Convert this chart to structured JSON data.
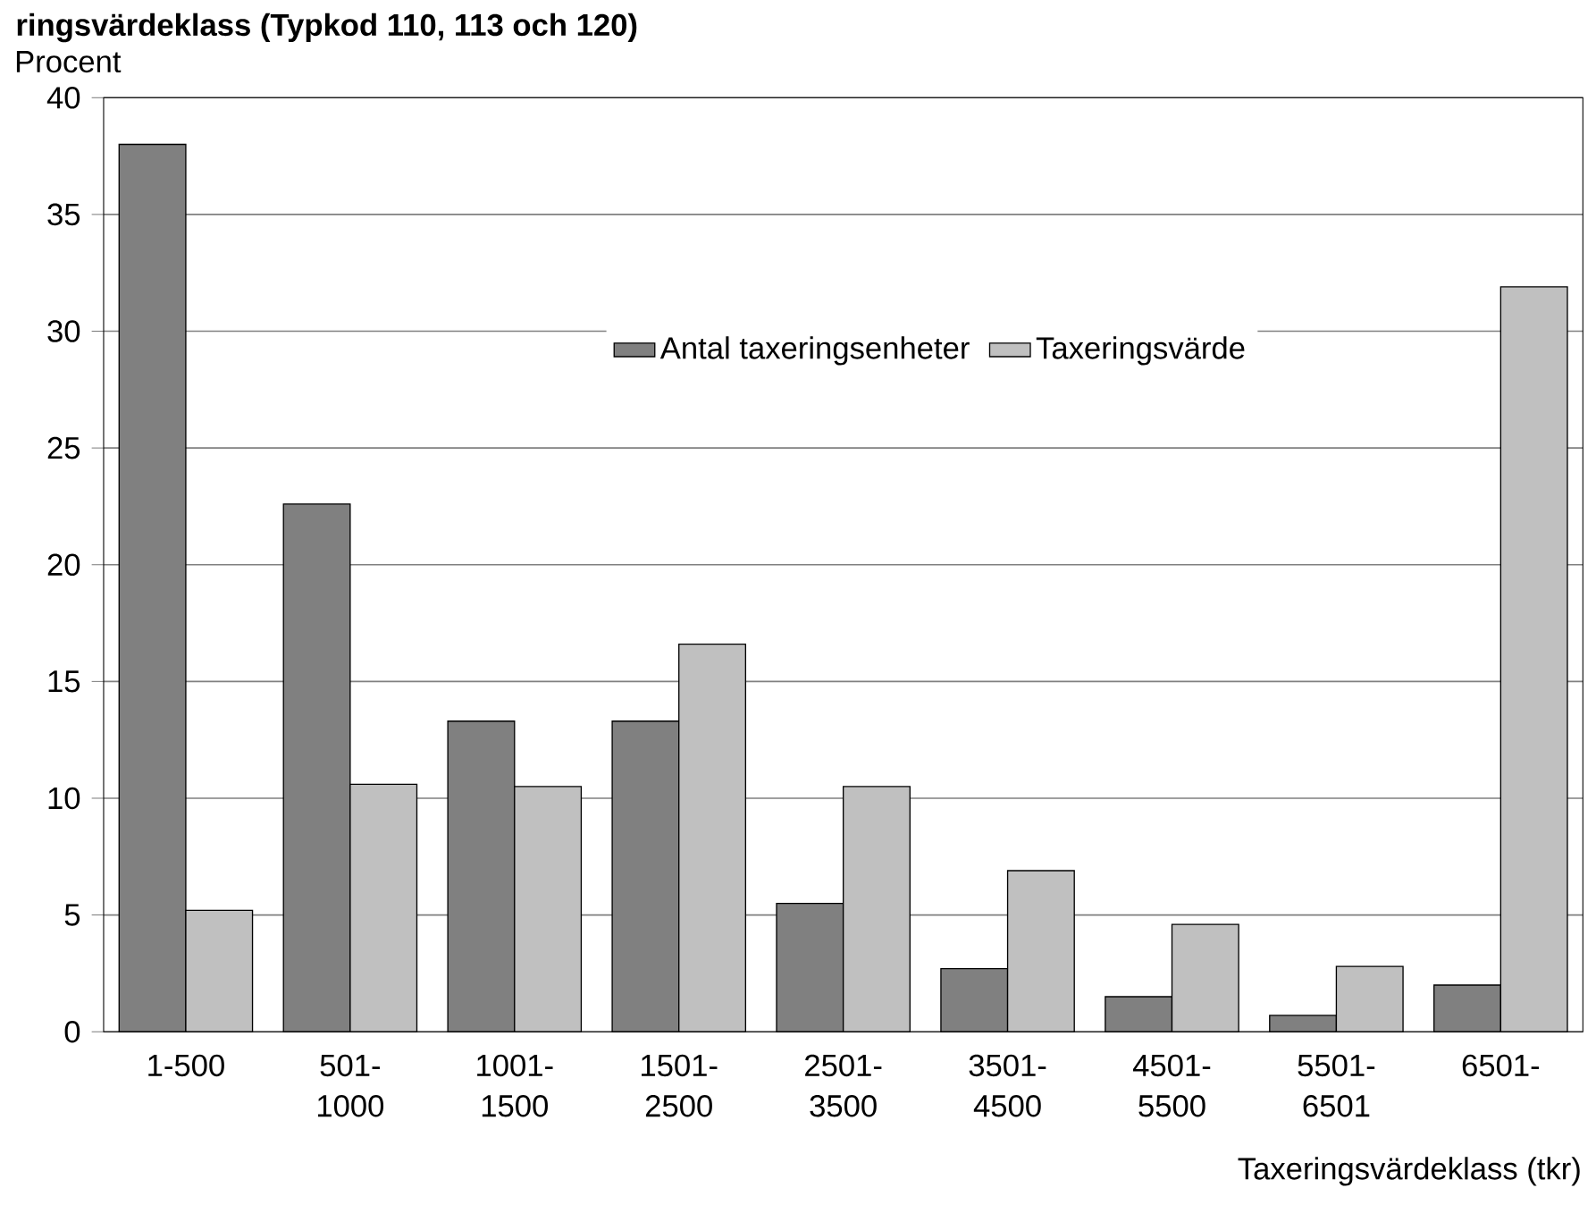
{
  "chart_data": {
    "type": "bar",
    "title": "ringsvärdeklass (Typkod 110, 113 och 120)",
    "xlabel": "Taxeringsvärdeklass (tkr)",
    "ylabel": "Procent",
    "categories": [
      "1-500",
      "501-1000",
      "1001-1500",
      "1501-2500",
      "2501-3500",
      "3501-4500",
      "4501-5500",
      "5501-6501",
      "6501-"
    ],
    "series": [
      {
        "name": "Antal taxeringsenheter",
        "color": "#808080",
        "values": [
          38.0,
          22.6,
          13.3,
          13.3,
          5.5,
          2.7,
          1.5,
          0.7,
          2.0
        ]
      },
      {
        "name": "Taxeringsvärde",
        "color": "#c0c0c0",
        "values": [
          5.2,
          10.6,
          10.5,
          16.6,
          10.5,
          6.9,
          4.6,
          2.8,
          31.9
        ]
      }
    ],
    "ylim": [
      0,
      40
    ],
    "yticks": [
      0,
      5,
      10,
      15,
      20,
      25,
      30,
      35,
      40
    ],
    "grid": "y",
    "legend": "top"
  }
}
